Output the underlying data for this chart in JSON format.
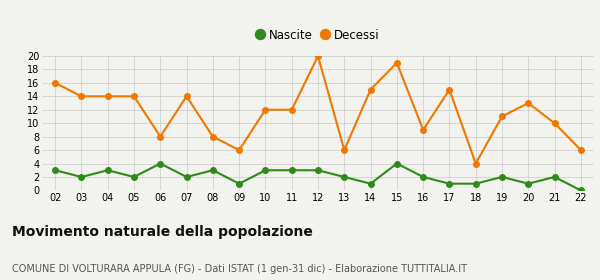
{
  "years": [
    "02",
    "03",
    "04",
    "05",
    "06",
    "07",
    "08",
    "09",
    "10",
    "11",
    "12",
    "13",
    "14",
    "15",
    "16",
    "17",
    "18",
    "19",
    "20",
    "21",
    "22"
  ],
  "nascite": [
    3,
    2,
    3,
    2,
    4,
    2,
    3,
    1,
    3,
    3,
    3,
    2,
    1,
    4,
    2,
    1,
    1,
    2,
    1,
    2,
    0
  ],
  "decessi": [
    16,
    14,
    14,
    14,
    8,
    14,
    8,
    6,
    12,
    12,
    20,
    6,
    15,
    19,
    9,
    15,
    4,
    11,
    13,
    10,
    6
  ],
  "nascite_color": "#2e8b1a",
  "decessi_color": "#f07800",
  "bg_color": "#f2f2ee",
  "grid_color": "#d0d0d0",
  "ylim": [
    0,
    20
  ],
  "yticks": [
    0,
    2,
    4,
    6,
    8,
    10,
    12,
    14,
    16,
    18,
    20
  ],
  "title": "Movimento naturale della popolazione",
  "subtitle": "COMUNE DI VOLTURARA APPULA (FG) - Dati ISTAT (1 gen-31 dic) - Elaborazione TUTTITALIA.IT",
  "legend_nascite": "Nascite",
  "legend_decessi": "Decessi",
  "title_fontsize": 10,
  "subtitle_fontsize": 7,
  "axis_fontsize": 7,
  "legend_fontsize": 8.5,
  "marker_size": 4,
  "line_width": 1.5
}
